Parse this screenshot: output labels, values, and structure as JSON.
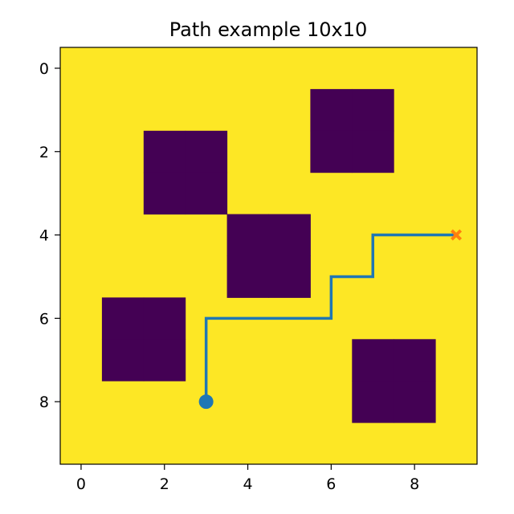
{
  "chart_data": {
    "type": "heatmap",
    "title": "Path example 10x10",
    "xlabel": "",
    "ylabel": "",
    "grid_size": 10,
    "xlim": [
      -0.5,
      9.5
    ],
    "ylim": [
      9.5,
      -0.5
    ],
    "y_inverted": true,
    "grid": false,
    "x_ticks": [
      0,
      2,
      4,
      6,
      8
    ],
    "y_ticks": [
      0,
      2,
      4,
      6,
      8
    ],
    "colors": {
      "free": "#fde725",
      "obstacle": "#440154",
      "path": "#1f77b4",
      "start": "#1f77b4",
      "goal": "#ff7f0e"
    },
    "obstacles": [
      {
        "row": 1,
        "col": 6
      },
      {
        "row": 1,
        "col": 7
      },
      {
        "row": 2,
        "col": 6
      },
      {
        "row": 2,
        "col": 7
      },
      {
        "row": 2,
        "col": 2
      },
      {
        "row": 2,
        "col": 3
      },
      {
        "row": 3,
        "col": 2
      },
      {
        "row": 3,
        "col": 3
      },
      {
        "row": 4,
        "col": 4
      },
      {
        "row": 4,
        "col": 5
      },
      {
        "row": 5,
        "col": 4
      },
      {
        "row": 5,
        "col": 5
      },
      {
        "row": 6,
        "col": 1
      },
      {
        "row": 6,
        "col": 2
      },
      {
        "row": 7,
        "col": 1
      },
      {
        "row": 7,
        "col": 2
      },
      {
        "row": 7,
        "col": 7
      },
      {
        "row": 7,
        "col": 8
      },
      {
        "row": 8,
        "col": 7
      },
      {
        "row": 8,
        "col": 8
      }
    ],
    "path": [
      {
        "x": 3,
        "y": 8
      },
      {
        "x": 3,
        "y": 7
      },
      {
        "x": 3,
        "y": 6
      },
      {
        "x": 4,
        "y": 6
      },
      {
        "x": 5,
        "y": 6
      },
      {
        "x": 6,
        "y": 6
      },
      {
        "x": 6,
        "y": 5
      },
      {
        "x": 7,
        "y": 5
      },
      {
        "x": 7,
        "y": 4
      },
      {
        "x": 8,
        "y": 4
      },
      {
        "x": 9,
        "y": 4
      }
    ],
    "start": {
      "x": 3,
      "y": 8
    },
    "goal": {
      "x": 9,
      "y": 4
    }
  }
}
